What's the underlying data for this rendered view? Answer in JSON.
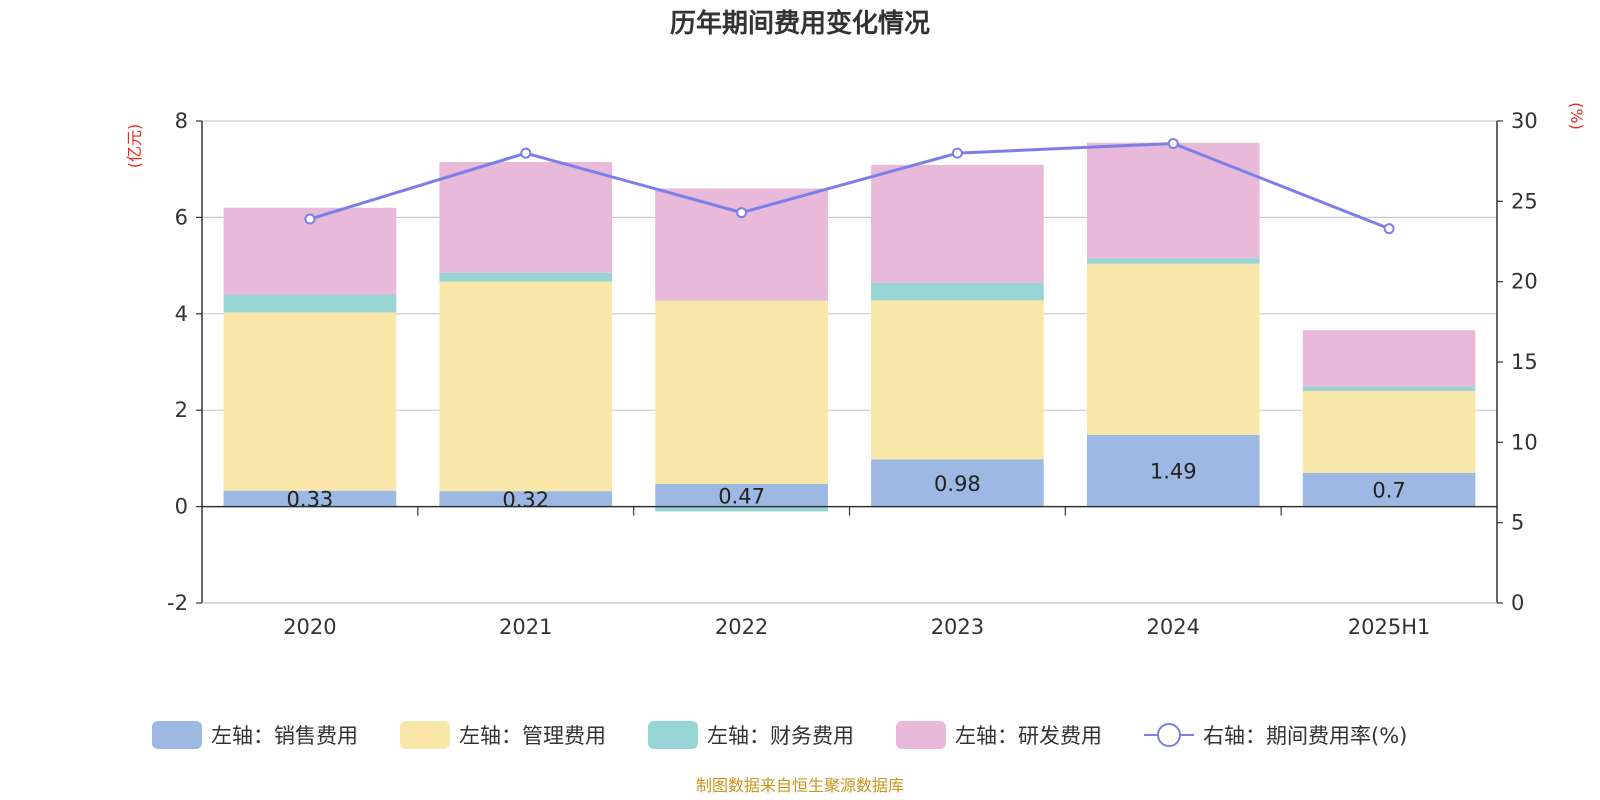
{
  "chart_data": {
    "type": "bar",
    "title": "历年期间费用变化情况",
    "categories": [
      "2020",
      "2021",
      "2022",
      "2023",
      "2024",
      "2025H1"
    ],
    "left_axis": {
      "unit": "(亿元)",
      "ylim": [
        -2,
        8
      ],
      "ticks": [
        8,
        6,
        4,
        2,
        0,
        -2
      ]
    },
    "right_axis": {
      "unit": "(%)",
      "ylim": [
        0,
        30
      ],
      "ticks": [
        30,
        25,
        20,
        15,
        10,
        5,
        0
      ]
    },
    "series": [
      {
        "name": "左轴：销售费用",
        "type": "bar",
        "color": "#9db8e2",
        "values": [
          0.33,
          0.32,
          0.47,
          0.98,
          1.49,
          0.7
        ],
        "labels": [
          "0.33",
          "0.32",
          "0.47",
          "0.98",
          "1.49",
          "0.7"
        ]
      },
      {
        "name": "左轴：管理费用",
        "type": "bar",
        "color": "#f8e7a9",
        "values": [
          3.7,
          4.35,
          3.8,
          3.3,
          3.55,
          1.7
        ]
      },
      {
        "name": "左轴：财务费用",
        "type": "bar",
        "color": "#97d4d4",
        "values": [
          0.37,
          0.18,
          -0.1,
          0.36,
          0.11,
          0.09
        ]
      },
      {
        "name": "左轴：研发费用",
        "type": "bar",
        "color": "#e8b9d9",
        "values": [
          1.8,
          2.3,
          2.33,
          2.45,
          2.4,
          1.17
        ]
      },
      {
        "name": "右轴：期间费用率(%)",
        "type": "line",
        "color": "#7b7fea",
        "values": [
          23.9,
          28.0,
          24.3,
          28.0,
          28.6,
          23.3
        ]
      }
    ],
    "grid": true,
    "legend_position": "bottom"
  },
  "footer": {
    "source": "制图数据来自恒生聚源数据库"
  }
}
